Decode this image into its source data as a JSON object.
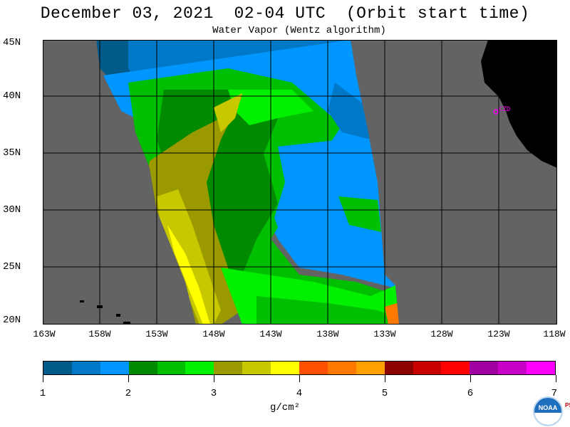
{
  "header": {
    "title": "December 03, 2021  02-04 UTC  (Orbit start time)",
    "subtitle": "Water Vapor (Wentz algorithm)"
  },
  "map": {
    "lat_labels": [
      "45N",
      "40N",
      "35N",
      "30N",
      "25N",
      "20N"
    ],
    "lon_labels": [
      "163W",
      "158W",
      "153W",
      "148W",
      "143W",
      "138W",
      "133W",
      "128W",
      "123W",
      "118W"
    ],
    "station_label": "CZD",
    "background_color": "#636363",
    "land_color": "#000000",
    "station_color": "#ff00ff"
  },
  "colorbar": {
    "colors": [
      "#005a8a",
      "#0078c8",
      "#0096ff",
      "#008a00",
      "#00be00",
      "#00f000",
      "#9a9a00",
      "#c8c800",
      "#ffff00",
      "#ff5000",
      "#ff7800",
      "#ffa000",
      "#8c0000",
      "#c80000",
      "#ff0000",
      "#a000a0",
      "#c800c8",
      "#ff00ff"
    ],
    "tick_labels": [
      "1",
      "2",
      "3",
      "4",
      "5",
      "6",
      "7"
    ],
    "units": "g/cm²"
  },
  "logo": {
    "name": "NOAA",
    "side_text": "PSL"
  }
}
